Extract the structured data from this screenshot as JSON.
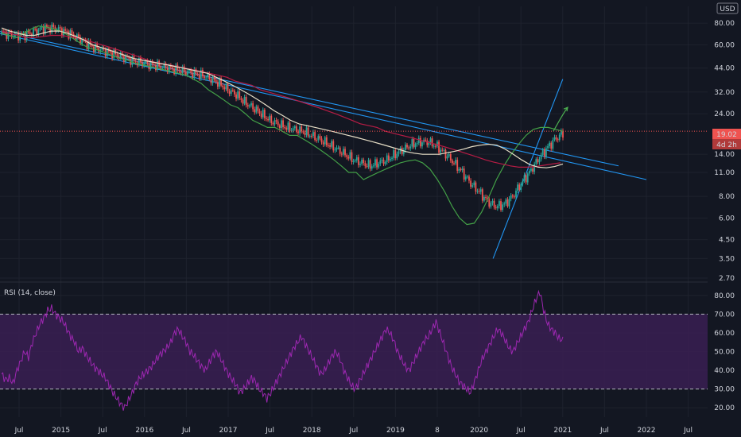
{
  "currency": "USD",
  "price_tag": "19.02",
  "countdown": "4d 2h",
  "rsi_title": "RSI (14, close)",
  "colors": {
    "background": "#131722",
    "up": "#26a69a",
    "down": "#ef5350",
    "ma_slow": "#43a047",
    "ma_mid": "#b71c45",
    "ma_fast": "#e8e0c8",
    "trendline": "#2196f3",
    "rsi_line": "#9c27b0",
    "rsi_band": "#3a1f52",
    "price_line": "#ef5350",
    "arrow": "#4caf50"
  },
  "chart_data": [
    {
      "type": "candlestick",
      "scale": "log",
      "ylim": [
        2.7,
        100
      ],
      "yticks": [
        "80.00",
        "60.00",
        "44.00",
        "32.00",
        "24.00",
        "19.02",
        "14.00",
        "11.00",
        "8.00",
        "6.00",
        "4.50",
        "3.50",
        "2.70"
      ],
      "xticks": [
        "Jul",
        "2015",
        "Jul",
        "2016",
        "Jul",
        "2017",
        "Jul",
        "2018",
        "Jul",
        "2019",
        "8",
        "2020",
        "Jul",
        "2021",
        "Jul",
        "2022",
        "Jul"
      ],
      "last_price": 19.02,
      "series": [
        {
          "name": "",
          "values": [
            70,
            68,
            66,
            70,
            74,
            77,
            76,
            74,
            72,
            68,
            64,
            60,
            57,
            56,
            54,
            52,
            50,
            49,
            47,
            46,
            45,
            44,
            43,
            42,
            41,
            40,
            38,
            36,
            33,
            31,
            29,
            27,
            26,
            24,
            22,
            21,
            20,
            20,
            19,
            18,
            18,
            17,
            16,
            15,
            14,
            13,
            12,
            11,
            11,
            10,
            10.5,
            11,
            11.5,
            12,
            12.5,
            12.8,
            13,
            12.5,
            11.5,
            10,
            8.5,
            7,
            6,
            5.5,
            5.6,
            6.5,
            8,
            10,
            12,
            14,
            16,
            18,
            19.5,
            20,
            20,
            19.5,
            19.0
          ]
        },
        {
          "name": "",
          "values": [
            72,
            70,
            68,
            66,
            66,
            67,
            68,
            68,
            67,
            66,
            64,
            62,
            60,
            58,
            56,
            54,
            52,
            50,
            48,
            47,
            46,
            45,
            44,
            43,
            42,
            41,
            40,
            39,
            37,
            36,
            35,
            33,
            32,
            31,
            30,
            29,
            28,
            27,
            26,
            25,
            24,
            23,
            22,
            21,
            20.5,
            20,
            19,
            18.5,
            18,
            17.5,
            17,
            16.5,
            16,
            15.5,
            15,
            14.5,
            14,
            13.5,
            13,
            12.6,
            12.3,
            12,
            11.8,
            11.8,
            11.9,
            12.1,
            12.3,
            12.5
          ]
        },
        {
          "name": "",
          "values": [
            75,
            72,
            70,
            68,
            68,
            70,
            72,
            72,
            70,
            67,
            64,
            60,
            58,
            56,
            54,
            52,
            50,
            49,
            48,
            47,
            46,
            45,
            44,
            43,
            42,
            41,
            39,
            37,
            35,
            33,
            31,
            29,
            27,
            25,
            23.5,
            22,
            21,
            20.5,
            20,
            19.5,
            19,
            18.5,
            18,
            17.5,
            17,
            16.5,
            16,
            15.5,
            15,
            14.5,
            14.2,
            14,
            14,
            14,
            14.3,
            14.6,
            15,
            15.5,
            15.8,
            16,
            15.8,
            15,
            14,
            13,
            12.2,
            11.8,
            11.7,
            11.9,
            12.3
          ]
        },
        {
          "name": "",
          "values": [
            70,
            69,
            68,
            69,
            72,
            75,
            75,
            73,
            70,
            66,
            62,
            58,
            56,
            54,
            52,
            50,
            48,
            47,
            46,
            45,
            44,
            43,
            42,
            41,
            40,
            38,
            36,
            33,
            31,
            28,
            26,
            24,
            22,
            21,
            20,
            19.5,
            19,
            18,
            17,
            16,
            15,
            14,
            13,
            12.5,
            12,
            12.5,
            13,
            14,
            15,
            16,
            16.5,
            16.5,
            15.5,
            14,
            12.5,
            11,
            9.5,
            8.5,
            7.5,
            7,
            7.2,
            8,
            9.5,
            11,
            13,
            15,
            17,
            18.5
          ]
        }
      ],
      "trendlines": [
        {
          "from": [
            "2014-04",
            72
          ],
          "to": [
            "2021-09",
            12
          ]
        },
        {
          "from": [
            "2014-04",
            70
          ],
          "to": [
            "2022-01",
            10
          ]
        },
        {
          "from": [
            "2020-03",
            3.5
          ],
          "to": [
            "2021-01",
            38
          ]
        }
      ]
    },
    {
      "type": "line",
      "title": "RSI (14, close)",
      "ylim": [
        15,
        85
      ],
      "yticks": [
        "80.00",
        "70.00",
        "60.00",
        "50.00",
        "40.00",
        "30.00",
        "20.00"
      ],
      "bands": [
        30,
        70
      ],
      "series": [
        {
          "name": "",
          "values": [
            38,
            35,
            36,
            33,
            40,
            45,
            50,
            47,
            55,
            60,
            65,
            68,
            72,
            73,
            70,
            68,
            66,
            62,
            58,
            55,
            50,
            52,
            48,
            45,
            42,
            40,
            38,
            36,
            32,
            28,
            25,
            22,
            20,
            24,
            28,
            33,
            36,
            38,
            40,
            42,
            45,
            48,
            50,
            52,
            55,
            60,
            62,
            58,
            55,
            50,
            48,
            45,
            42,
            40,
            44,
            48,
            50,
            46,
            42,
            38,
            35,
            32,
            28,
            30,
            33,
            36,
            34,
            30,
            28,
            25,
            28,
            32,
            36,
            40,
            44,
            48,
            52,
            55,
            58,
            54,
            50,
            46,
            42,
            38,
            40,
            44,
            48,
            50,
            46,
            40,
            36,
            32,
            30,
            34,
            38,
            42,
            46,
            50,
            54,
            58,
            62,
            60,
            56,
            50,
            46,
            42,
            40,
            44,
            48,
            52,
            56,
            58,
            62,
            66,
            60,
            54,
            48,
            42,
            38,
            34,
            32,
            30,
            28,
            34,
            40,
            46,
            50,
            54,
            58,
            62,
            60,
            56,
            52,
            50,
            54,
            58,
            62,
            66,
            72,
            78,
            82,
            72,
            65,
            62,
            60,
            57,
            56
          ]
        }
      ]
    }
  ]
}
